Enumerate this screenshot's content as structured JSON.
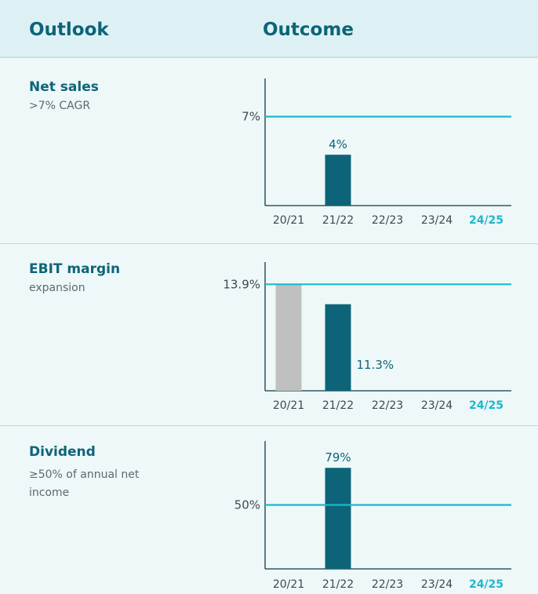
{
  "header": {
    "outlook": "Outlook",
    "outcome": "Outcome"
  },
  "colors": {
    "accent": "#1db8cc",
    "bar": "#0d6478",
    "bar_prior": "#c0c0c0",
    "text": "#0d6478"
  },
  "panels": [
    {
      "title": "Net sales",
      "subtitle": ">7% CAGR"
    },
    {
      "title": "EBIT margin",
      "subtitle": "expansion"
    },
    {
      "title": "Dividend",
      "subtitle": "≥50% of annual net income"
    }
  ],
  "chart_data": [
    {
      "type": "bar",
      "categories": [
        "20/21",
        "21/22",
        "22/23",
        "23/24",
        "24/25"
      ],
      "highlight_category": "24/25",
      "values": [
        null,
        4,
        null,
        null,
        null
      ],
      "value_labels": [
        "",
        "4%",
        "",
        "",
        ""
      ],
      "target": 7,
      "target_label": "7%",
      "ylim": [
        0,
        10
      ]
    },
    {
      "type": "bar",
      "categories": [
        "20/21",
        "21/22",
        "22/23",
        "23/24",
        "24/25"
      ],
      "highlight_category": "24/25",
      "values": [
        13.9,
        11.3,
        null,
        null,
        null
      ],
      "bar_colors": [
        "#c0c0c0",
        "#0d6478",
        null,
        null,
        null
      ],
      "value_labels": [
        "",
        "11.3%",
        "",
        "",
        ""
      ],
      "target": 13.9,
      "target_label": "13.9%",
      "ylim": [
        0,
        16.8
      ]
    },
    {
      "type": "bar",
      "categories": [
        "20/21",
        "21/22",
        "22/23",
        "23/24",
        "24/25"
      ],
      "highlight_category": "24/25",
      "values": [
        null,
        79,
        null,
        null,
        null
      ],
      "value_labels": [
        "",
        "79%",
        "",
        "",
        ""
      ],
      "target": 50,
      "target_label": "50%",
      "ylim": [
        0,
        100
      ]
    }
  ]
}
